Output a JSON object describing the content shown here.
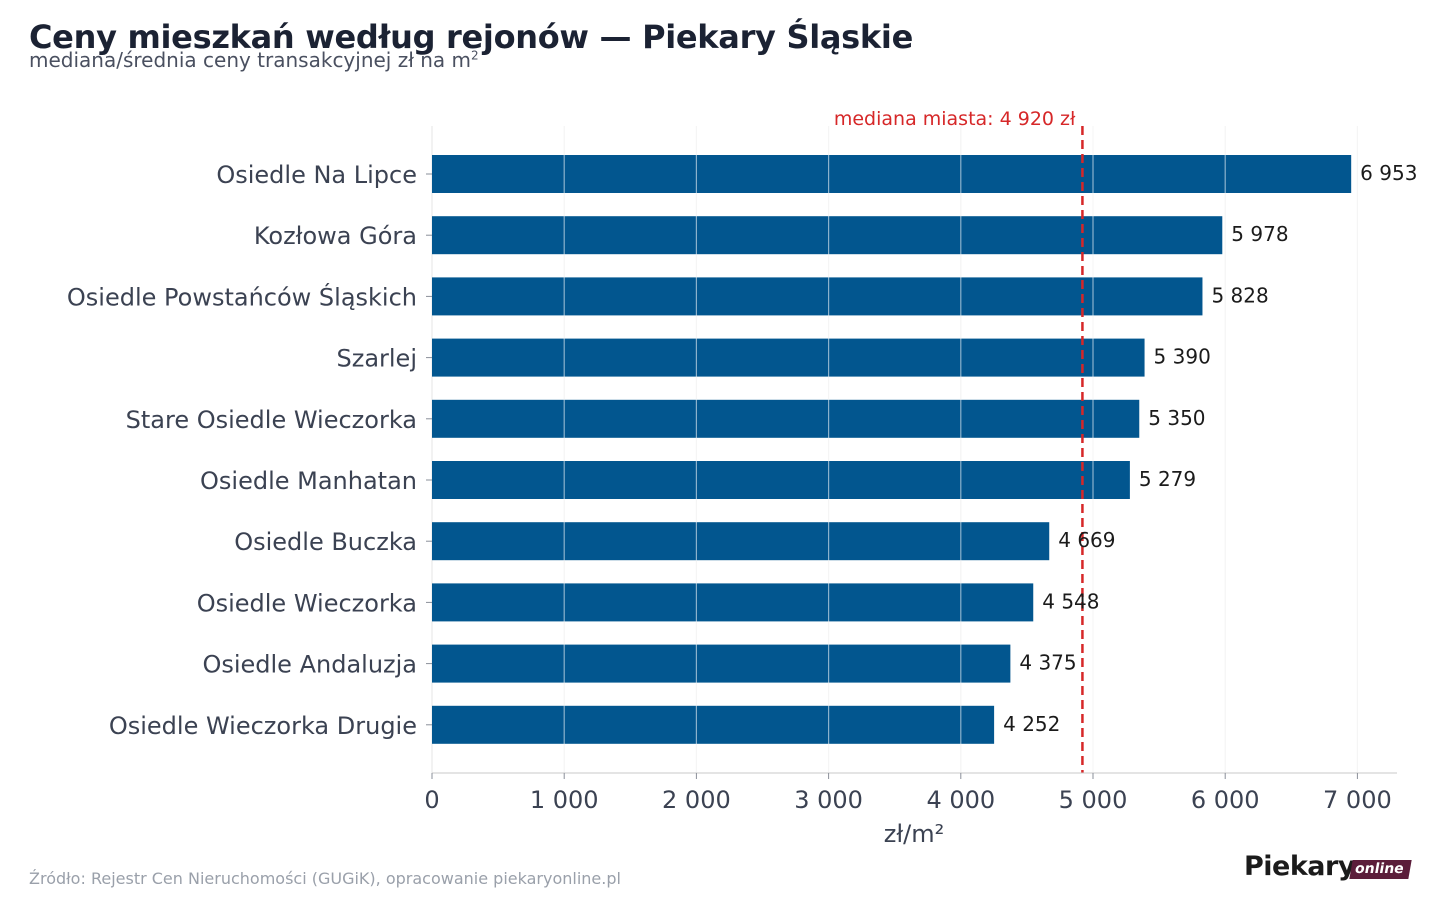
{
  "header": {
    "title": "Ceny mieszkań według rejonów — Piekary Śląskie",
    "subtitle_text": "mediana/średnia ceny transakcyjnej zł na m",
    "subtitle_sup": "2"
  },
  "footer": {
    "source": "Źródło: Rejestr Cen Nieruchomości (GUGiK), opracowanie piekaryonline.pl",
    "logo_main": "Piekary",
    "logo_tag": "online"
  },
  "colors": {
    "bar": "#02568f",
    "median_line": "#d62728",
    "grid": "#e6e6e6",
    "label": "#3b4252"
  },
  "chart_data": {
    "type": "bar",
    "orientation": "horizontal",
    "categories": [
      "Osiedle Na Lipce",
      "Kozłowa Góra",
      "Osiedle Powstańców Śląskich",
      "Szarlej",
      "Stare Osiedle Wieczorka",
      "Osiedle Manhatan",
      "Osiedle Buczka",
      "Osiedle Wieczorka",
      "Osiedle Andaluzja",
      "Osiedle Wieczorka Drugie"
    ],
    "values": [
      6953,
      5978,
      5828,
      5390,
      5350,
      5279,
      4669,
      4548,
      4375,
      4252
    ],
    "value_labels": [
      "6 953",
      "5 978",
      "5 828",
      "5 390",
      "5 350",
      "5 279",
      "4 669",
      "4 548",
      "4 375",
      "4 252"
    ],
    "xlabel": "zł/m²",
    "xlim": [
      0,
      7300
    ],
    "xticks": [
      0,
      1000,
      2000,
      3000,
      4000,
      5000,
      6000,
      7000
    ],
    "xtick_labels": [
      "0",
      "1 000",
      "2 000",
      "3 000",
      "4 000",
      "5 000",
      "6 000",
      "7 000"
    ],
    "grid": true,
    "reference_line": {
      "value": 4920,
      "label": "mediana miasta: 4 920 zł"
    }
  }
}
